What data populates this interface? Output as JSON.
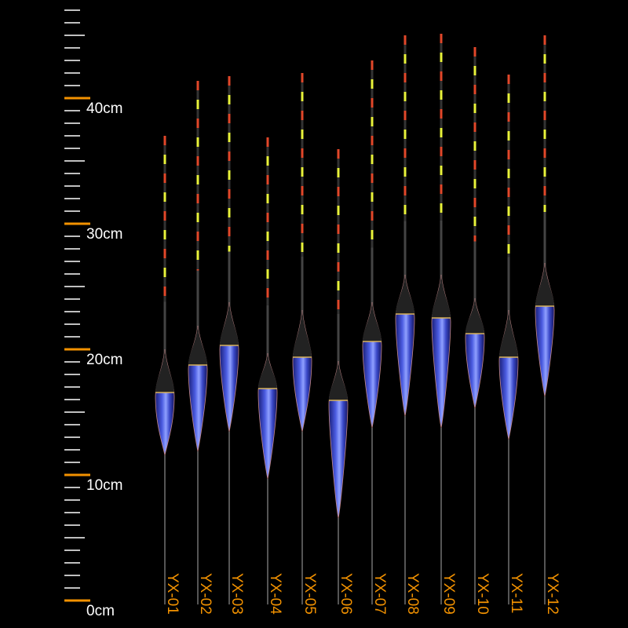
{
  "ruler": {
    "labels": [
      "40cm",
      "30cm",
      "20cm",
      "10cm",
      "0cm"
    ]
  },
  "floats": {
    "labels": [
      "YX-01",
      "YX-02",
      "YX-03",
      "YX-04",
      "YX-05",
      "YX-06",
      "YX-07",
      "YX-08",
      "YX-09",
      "YX-10",
      "YX-11",
      "YX-12"
    ]
  }
}
